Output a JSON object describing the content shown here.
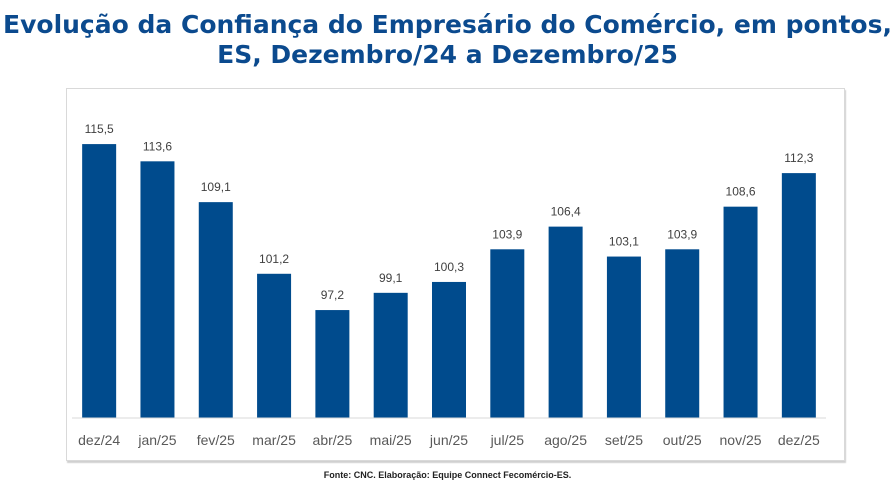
{
  "title": {
    "line1": "Evolução da Confiança do Empresário do Comércio, em pontos,",
    "line2": "ES, Dezembro/24 a Dezembro/25"
  },
  "source": "Fonte: CNC.  Elaboração: Equipe Connect Fecomércio-ES.",
  "colors": {
    "bar": "#004b8d",
    "title": "#0b4a8e",
    "label": "#404040",
    "axis": "#d9d9d9"
  },
  "chart_data": {
    "type": "bar",
    "title": "Evolução da Confiança do Empresário do Comércio, em pontos, ES, Dezembro/24 a Dezembro/25",
    "xlabel": "",
    "ylabel": "",
    "categories": [
      "dez/24",
      "jan/25",
      "fev/25",
      "mar/25",
      "abr/25",
      "mai/25",
      "jun/25",
      "jul/25",
      "ago/25",
      "set/25",
      "out/25",
      "nov/25",
      "dez/25"
    ],
    "values": [
      115.5,
      113.6,
      109.1,
      101.2,
      97.2,
      99.1,
      100.3,
      103.9,
      106.4,
      103.1,
      103.9,
      108.6,
      112.3
    ],
    "value_labels": [
      "115,5",
      "113,6",
      "109,1",
      "101,2",
      "97,2",
      "99,1",
      "100,3",
      "103,9",
      "106,4",
      "103,1",
      "103,9",
      "108,6",
      "112,3"
    ],
    "ylim": [
      85.3,
      120
    ],
    "grid": false,
    "legend": "none"
  }
}
